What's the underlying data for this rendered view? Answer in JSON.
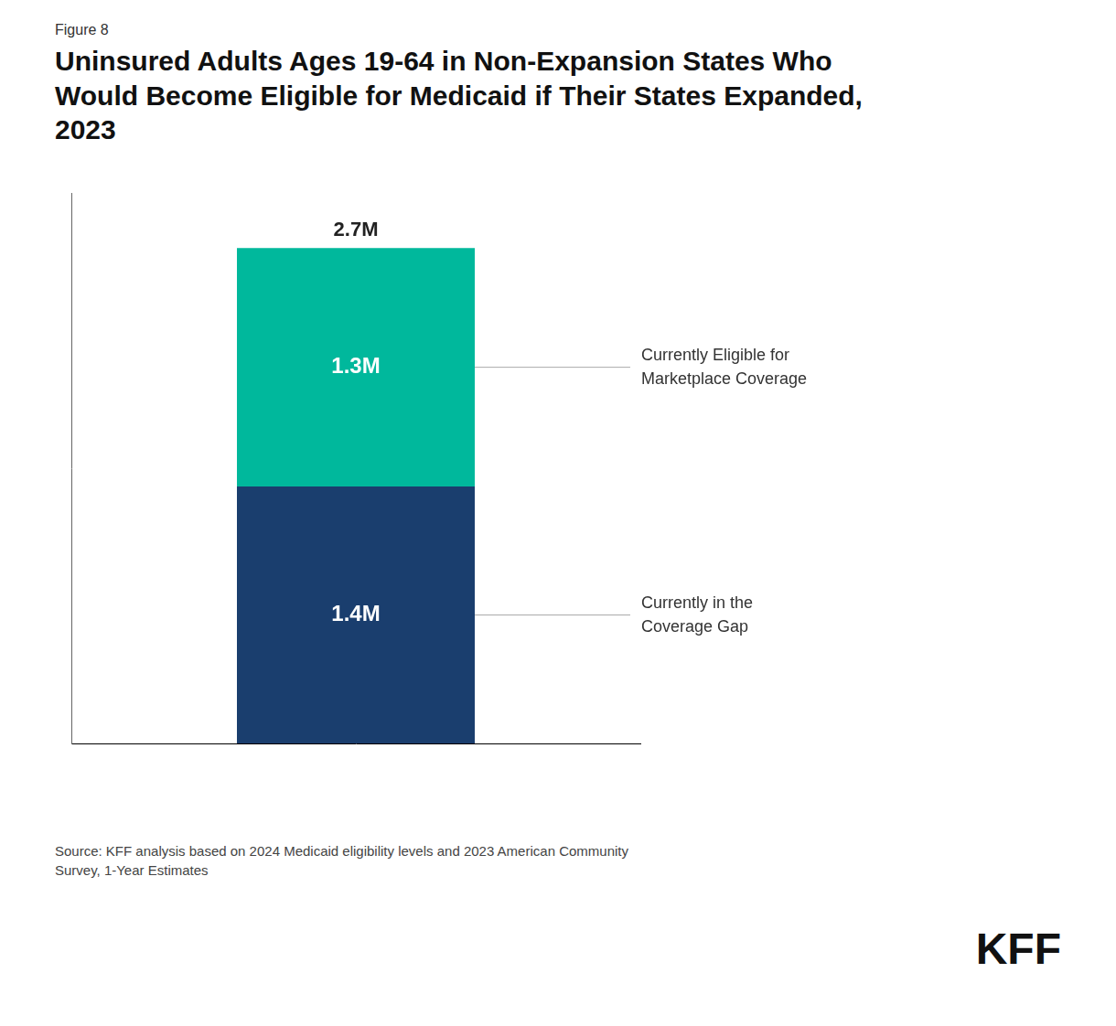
{
  "chart_data": {
    "type": "bar",
    "stacked": true,
    "subtitle": "Figure 8",
    "title": "Uninsured Adults Ages 19-64 in Non-Expansion States Who\nWould Become Eligible for Medicaid if Their States Expanded,\n2023",
    "categories": [
      null
    ],
    "series": [
      {
        "name": "Currently in the\nCoverage Gap",
        "color": "#1a3e6e",
        "values": [
          1.4
        ],
        "value_labels": [
          "1.4M"
        ]
      },
      {
        "name": "Currently Eligible for\nMarketplace Coverage",
        "color": "#00b89c",
        "values": [
          1.3
        ],
        "value_labels": [
          "1.3M"
        ]
      }
    ],
    "total_labels": [
      "2.7M"
    ],
    "data_labels": true,
    "ylim": [
      0,
      3.0
    ],
    "tick_labels": false,
    "grid": false,
    "annotations": [
      "Source: KFF analysis based on 2024 Medicaid eligibility levels and 2023 American Community\nSurvey, 1-Year Estimates",
      "KFF"
    ]
  }
}
